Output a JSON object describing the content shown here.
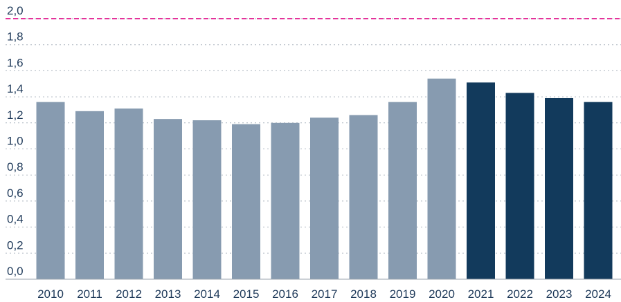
{
  "chart_data": {
    "type": "bar",
    "categories": [
      "2010",
      "2011",
      "2012",
      "2013",
      "2014",
      "2015",
      "2016",
      "2017",
      "2018",
      "2019",
      "2020",
      "2021",
      "2022",
      "2023",
      "2024"
    ],
    "values": [
      1.36,
      1.29,
      1.31,
      1.23,
      1.22,
      1.19,
      1.2,
      1.24,
      1.26,
      1.36,
      1.54,
      1.51,
      1.43,
      1.39,
      1.36
    ],
    "colors": [
      "#879bb0",
      "#879bb0",
      "#879bb0",
      "#879bb0",
      "#879bb0",
      "#879bb0",
      "#879bb0",
      "#879bb0",
      "#879bb0",
      "#879bb0",
      "#879bb0",
      "#123a5c",
      "#123a5c",
      "#123a5c",
      "#123a5c"
    ],
    "ylim": [
      0,
      2
    ],
    "yticks": [
      {
        "value": 0,
        "label": "0,0"
      },
      {
        "value": 0.2,
        "label": "0,2"
      },
      {
        "value": 0.4,
        "label": "0,4"
      },
      {
        "value": 0.6,
        "label": "0,6"
      },
      {
        "value": 0.8,
        "label": "0,8"
      },
      {
        "value": 1,
        "label": "1,0"
      },
      {
        "value": 1.2,
        "label": "1,2"
      },
      {
        "value": 1.4,
        "label": "1,4"
      },
      {
        "value": 1.6,
        "label": "1,6"
      },
      {
        "value": 1.8,
        "label": "1,8"
      },
      {
        "value": 2,
        "label": "2,0"
      }
    ],
    "grid": true,
    "reference_line": {
      "value": 2,
      "color": "#e5339b"
    }
  }
}
